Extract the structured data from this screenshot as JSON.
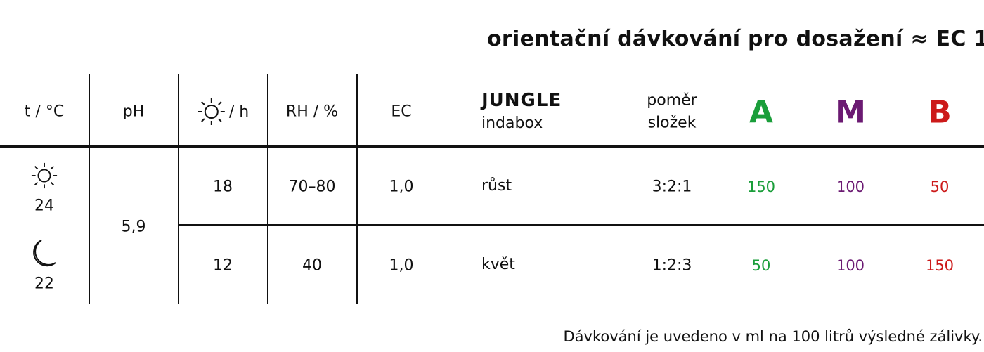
{
  "title": "orientační dávkování pro dosažení ≈ EC 1",
  "headers": {
    "temp": "t / °C",
    "ph": "pH",
    "light_icon": "sun-icon",
    "light": "/ h",
    "rh": "RH / %",
    "ec": "EC",
    "product_name": "JUNGLE",
    "product_sub": "indabox",
    "ratio_line1": "poměr",
    "ratio_line2": "složek",
    "a": "A",
    "m": "M",
    "b": "B"
  },
  "temps": {
    "day_icon": "sun-icon",
    "day": "24",
    "night_icon": "moon-icon",
    "night": "22"
  },
  "ph_value": "5,9",
  "rows": [
    {
      "light": "18",
      "rh": "70–80",
      "ec": "1,0",
      "phase": "růst",
      "ratio": "3:2:1",
      "a": "150",
      "m": "100",
      "b": "50"
    },
    {
      "light": "12",
      "rh": "40",
      "ec": "1,0",
      "phase": "květ",
      "ratio": "1:2:3",
      "a": "50",
      "m": "100",
      "b": "150"
    }
  ],
  "colors": {
    "a": "#1a9e3a",
    "m": "#6b1a72",
    "b": "#cc1a1a"
  },
  "footer": "Dávkování je uvedeno v ml na 100 litrů výsledné zálivky."
}
